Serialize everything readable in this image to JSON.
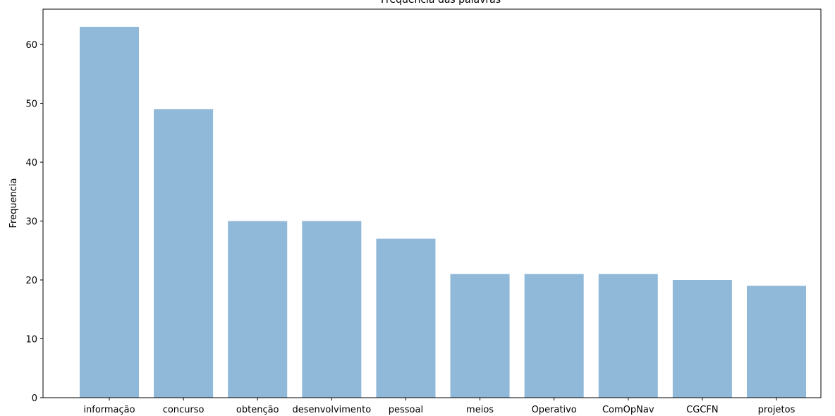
{
  "chart_data": {
    "type": "bar",
    "title": "Frequencia das palavras",
    "xlabel": "",
    "ylabel": "Frequencia",
    "categories": [
      "informação",
      "concurso",
      "obtenção",
      "desenvolvimento",
      "pessoal",
      "meios",
      "Operativo",
      "ComOpNav",
      "CGCFN",
      "projetos"
    ],
    "values": [
      63,
      49,
      30,
      30,
      27,
      21,
      21,
      21,
      20,
      19
    ],
    "yticks": [
      0,
      10,
      20,
      30,
      40,
      50,
      60
    ],
    "ylim": [
      0,
      66
    ],
    "grid": false,
    "bar_color": "#8fb8d9"
  }
}
